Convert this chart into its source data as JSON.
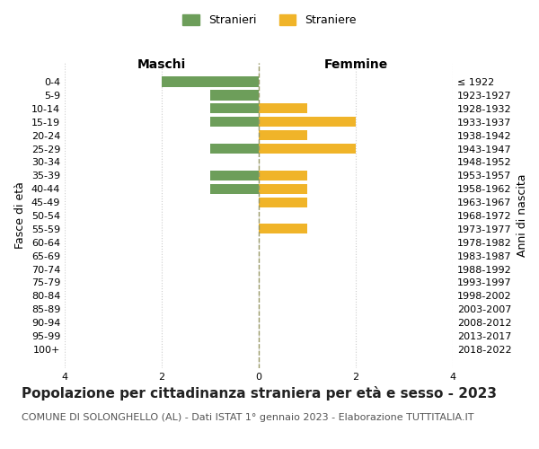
{
  "age_groups": [
    "0-4",
    "5-9",
    "10-14",
    "15-19",
    "20-24",
    "25-29",
    "30-34",
    "35-39",
    "40-44",
    "45-49",
    "50-54",
    "55-59",
    "60-64",
    "65-69",
    "70-74",
    "75-79",
    "80-84",
    "85-89",
    "90-94",
    "95-99",
    "100+"
  ],
  "birth_years": [
    "2018-2022",
    "2013-2017",
    "2008-2012",
    "2003-2007",
    "1998-2002",
    "1993-1997",
    "1988-1992",
    "1983-1987",
    "1978-1982",
    "1973-1977",
    "1968-1972",
    "1963-1967",
    "1958-1962",
    "1953-1957",
    "1948-1952",
    "1943-1947",
    "1938-1942",
    "1933-1937",
    "1928-1932",
    "1923-1927",
    "≤ 1922"
  ],
  "maschi": [
    2,
    1,
    1,
    1,
    0,
    1,
    0,
    1,
    1,
    0,
    0,
    0,
    0,
    0,
    0,
    0,
    0,
    0,
    0,
    0,
    0
  ],
  "femmine": [
    0,
    0,
    1,
    2,
    1,
    2,
    0,
    1,
    1,
    1,
    0,
    1,
    0,
    0,
    0,
    0,
    0,
    0,
    0,
    0,
    0
  ],
  "color_maschi": "#6d9e5a",
  "color_femmine": "#f0b429",
  "title": "Popolazione per cittadinanza straniera per età e sesso - 2023",
  "subtitle": "COMUNE DI SOLONGHELLO (AL) - Dati ISTAT 1° gennaio 2023 - Elaborazione TUTTITALIA.IT",
  "ylabel_left": "Fasce di età",
  "ylabel_right": "Anni di nascita",
  "header_left": "Maschi",
  "header_right": "Femmine",
  "legend_stranieri": "Stranieri",
  "legend_straniere": "Straniere",
  "xlim": 4,
  "background_color": "#ffffff",
  "grid_color": "#cccccc",
  "title_fontsize": 11,
  "subtitle_fontsize": 8,
  "tick_fontsize": 8,
  "label_fontsize": 9,
  "header_fontsize": 10
}
